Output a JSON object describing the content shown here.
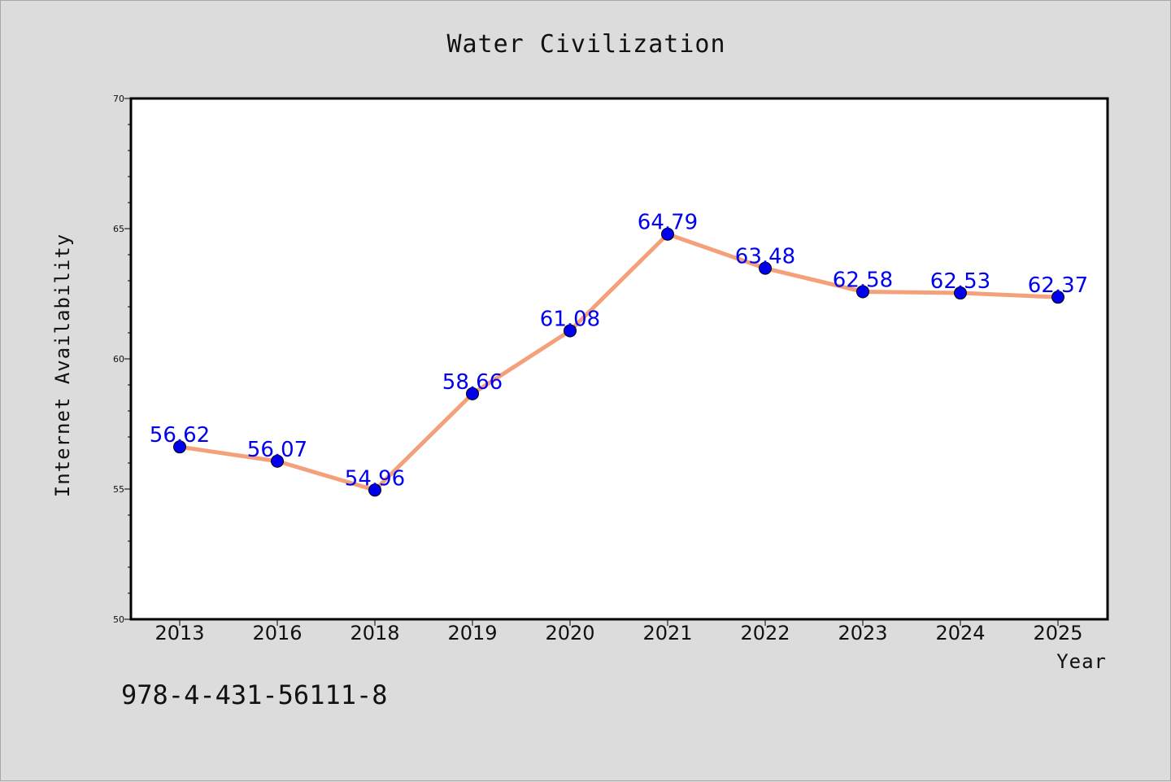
{
  "chart_data": {
    "type": "line",
    "title": "Water Civilization",
    "xlabel": "Year",
    "ylabel": "Internet Availability",
    "categories": [
      "2013",
      "2016",
      "2018",
      "2019",
      "2020",
      "2021",
      "2022",
      "2023",
      "2024",
      "2025"
    ],
    "values": [
      56.62,
      56.07,
      54.96,
      58.66,
      61.08,
      64.79,
      63.48,
      62.58,
      62.53,
      62.37
    ],
    "value_labels": [
      "56.62",
      "56.07",
      "54.96",
      "58.66",
      "61.08",
      "64.79",
      "63.48",
      "62.58",
      "62.53",
      "62.37"
    ],
    "ylim": [
      50,
      70
    ],
    "yticks": [
      50,
      55,
      60,
      65,
      70
    ],
    "grid": false,
    "legend": "none",
    "line_color": "#f4a07a",
    "marker_color": "#0000ee",
    "label_color": "#0000ee"
  },
  "footer": {
    "code_text": "978-4-431-56111-8"
  }
}
